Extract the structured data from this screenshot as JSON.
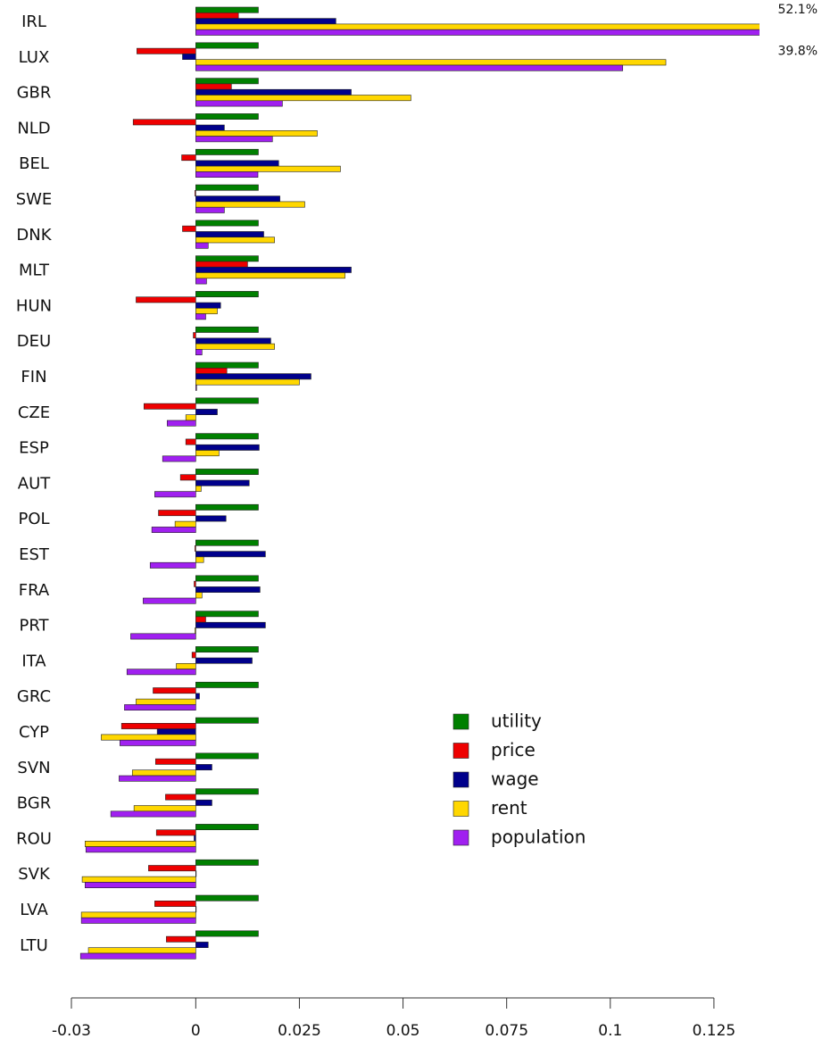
{
  "chart_data": {
    "type": "bar",
    "orientation": "horizontal",
    "categories": [
      "IRL",
      "LUX",
      "GBR",
      "NLD",
      "BEL",
      "SWE",
      "DNK",
      "MLT",
      "HUN",
      "DEU",
      "FIN",
      "CZE",
      "ESP",
      "AUT",
      "POL",
      "EST",
      "FRA",
      "PRT",
      "ITA",
      "GRC",
      "CYP",
      "SVN",
      "BGR",
      "ROU",
      "SVK",
      "LVA",
      "LTU"
    ],
    "series": [
      {
        "name": "utility",
        "color": "#008000",
        "values": [
          0.0151,
          0.0151,
          0.0151,
          0.0151,
          0.0151,
          0.0151,
          0.0151,
          0.0151,
          0.0151,
          0.0151,
          0.0151,
          0.0151,
          0.0151,
          0.0151,
          0.0151,
          0.0151,
          0.0151,
          0.0151,
          0.0151,
          0.0151,
          0.0151,
          0.0151,
          0.0151,
          0.0151,
          0.0151,
          0.0151,
          0.0151
        ]
      },
      {
        "name": "price",
        "color": "#ee0000",
        "values": [
          0.0103,
          -0.0142,
          0.0086,
          -0.0151,
          -0.0034,
          -0.0002,
          -0.0032,
          0.0125,
          -0.0144,
          -0.0006,
          0.0075,
          -0.0125,
          -0.0024,
          -0.0037,
          -0.009,
          -0.0002,
          -0.0004,
          0.0024,
          -0.0009,
          -0.0103,
          -0.0179,
          -0.0097,
          -0.0073,
          -0.0095,
          -0.0114,
          -0.0099,
          -0.0071
        ]
      },
      {
        "name": "wage",
        "color": "#00008b",
        "values": [
          0.0338,
          -0.0032,
          0.0375,
          0.0069,
          0.02,
          0.0203,
          0.0164,
          0.0375,
          0.006,
          0.0181,
          0.0278,
          0.0052,
          0.0153,
          0.0129,
          0.0073,
          0.0168,
          0.0155,
          0.0168,
          0.0136,
          0.0009,
          -0.0093,
          0.0039,
          0.0039,
          -0.0004,
          0.0001,
          0.0001,
          0.003
        ]
      },
      {
        "name": "rent",
        "color": "#ffd700",
        "values": [
          0.521,
          0.1134,
          0.0519,
          0.0293,
          0.0349,
          0.0263,
          0.019,
          0.036,
          0.0052,
          0.019,
          0.025,
          -0.0024,
          0.0056,
          0.0013,
          -0.005,
          0.0019,
          0.0015,
          -0.0002,
          -0.0047,
          -0.0144,
          -0.0228,
          -0.0153,
          -0.0149,
          -0.0267,
          -0.0274,
          -0.0276,
          -0.0259
        ],
        "value_labels": [
          "52.1%",
          null,
          null,
          null,
          null,
          null,
          null,
          null,
          null,
          null,
          null,
          null,
          null,
          null,
          null,
          null,
          null,
          null,
          null,
          null,
          null,
          null,
          null,
          null,
          null,
          null,
          null
        ]
      },
      {
        "name": "population",
        "color": "#a020f0",
        "values": [
          0.398,
          0.103,
          0.0209,
          0.0185,
          0.015,
          0.0069,
          0.003,
          0.0026,
          0.0024,
          0.0015,
          0.0002,
          -0.0069,
          -0.008,
          -0.0099,
          -0.0106,
          -0.011,
          -0.0127,
          -0.0157,
          -0.0166,
          -0.0172,
          -0.0183,
          -0.0185,
          -0.0205,
          -0.0265,
          -0.0267,
          -0.0276,
          -0.0278
        ],
        "value_labels": [
          "39.8%",
          null,
          null,
          null,
          null,
          null,
          null,
          null,
          null,
          null,
          null,
          null,
          null,
          null,
          null,
          null,
          null,
          null,
          null,
          null,
          null,
          null,
          null,
          null,
          null,
          null,
          null
        ]
      }
    ],
    "xlim": [
      -0.03,
      0.136
    ],
    "xticks": [
      -0.03,
      0,
      0.025,
      0.05,
      0.075,
      0.1,
      0.125
    ],
    "legend": "lower-right"
  }
}
